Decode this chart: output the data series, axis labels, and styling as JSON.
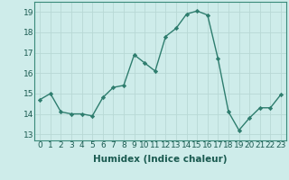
{
  "x": [
    0,
    1,
    2,
    3,
    4,
    5,
    6,
    7,
    8,
    9,
    10,
    11,
    12,
    13,
    14,
    15,
    16,
    17,
    18,
    19,
    20,
    21,
    22,
    23
  ],
  "y": [
    14.7,
    15.0,
    14.1,
    14.0,
    14.0,
    13.9,
    14.8,
    15.3,
    15.4,
    16.9,
    16.5,
    16.1,
    17.8,
    18.2,
    18.9,
    19.05,
    18.85,
    16.7,
    14.1,
    13.2,
    13.8,
    14.3,
    14.3,
    14.95
  ],
  "line_color": "#2e7d6e",
  "marker": "D",
  "markersize": 2.2,
  "linewidth": 1.0,
  "background_color": "#ceecea",
  "grid_color_major": "#b8d8d5",
  "grid_color_minor": "#d0e8e5",
  "xlabel": "Humidex (Indice chaleur)",
  "xlabel_fontsize": 7.5,
  "tick_fontsize": 6.5,
  "ylim": [
    12.7,
    19.5
  ],
  "xlim": [
    -0.5,
    23.5
  ],
  "yticks": [
    13,
    14,
    15,
    16,
    17,
    18,
    19
  ],
  "xticks": [
    0,
    1,
    2,
    3,
    4,
    5,
    6,
    7,
    8,
    9,
    10,
    11,
    12,
    13,
    14,
    15,
    16,
    17,
    18,
    19,
    20,
    21,
    22,
    23
  ]
}
